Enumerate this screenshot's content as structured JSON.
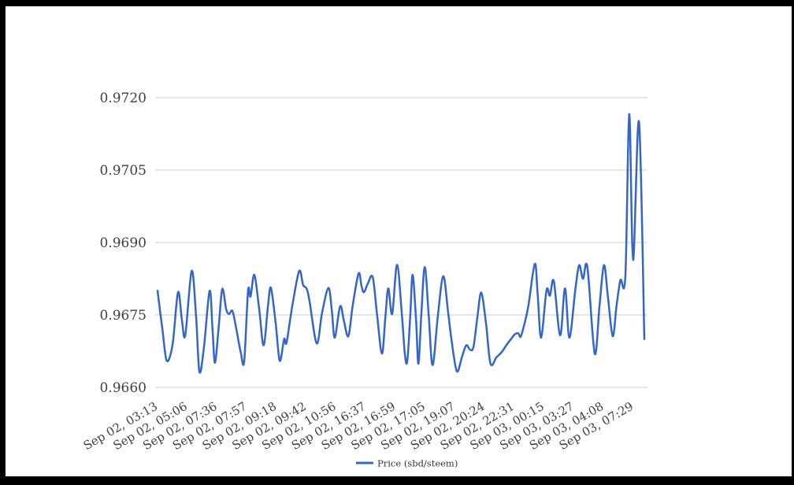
{
  "chart_data": {
    "type": "line",
    "title": "",
    "xlabel": "",
    "ylabel": "",
    "grid": true,
    "ylim": [
      0.966,
      0.972
    ],
    "y_ticks": [
      0.966,
      0.9675,
      0.969,
      0.9705,
      0.972
    ],
    "y_tick_labels": [
      "0.9660",
      "0.9675",
      "0.9690",
      "0.9705",
      "0.9720"
    ],
    "x_ticks": [
      "Sep 02, 03:13",
      "Sep 02, 05:06",
      "Sep 02, 07:36",
      "Sep 02, 07:57",
      "Sep 02, 09:18",
      "Sep 02, 09:42",
      "Sep 02, 10:56",
      "Sep 02, 16:37",
      "Sep 02, 16:59",
      "Sep 02, 17:05",
      "Sep 02, 19:07",
      "Sep 02, 20:24",
      "Sep 02, 22:31",
      "Sep 03, 00:15",
      "Sep 03, 03:27",
      "Sep 03, 04:08",
      "Sep 03, 07:29"
    ],
    "legend": {
      "label": "Price (sbd/steem)",
      "position": "bottom"
    },
    "series": [
      {
        "name": "Price (sbd/steem)",
        "color": "#3366cc",
        "points": [
          [
            0.0,
            0.968
          ],
          [
            0.01,
            0.9672
          ],
          [
            0.019,
            0.96655
          ],
          [
            0.031,
            0.9669
          ],
          [
            0.042,
            0.96797
          ],
          [
            0.05,
            0.9674
          ],
          [
            0.057,
            0.96708
          ],
          [
            0.07,
            0.96841
          ],
          [
            0.079,
            0.9675
          ],
          [
            0.086,
            0.96633
          ],
          [
            0.095,
            0.9668
          ],
          [
            0.107,
            0.968
          ],
          [
            0.113,
            0.9672
          ],
          [
            0.118,
            0.96651
          ],
          [
            0.126,
            0.9673
          ],
          [
            0.133,
            0.96804
          ],
          [
            0.141,
            0.96762
          ],
          [
            0.147,
            0.96752
          ],
          [
            0.154,
            0.96758
          ],
          [
            0.162,
            0.9672
          ],
          [
            0.171,
            0.96672
          ],
          [
            0.178,
            0.96654
          ],
          [
            0.186,
            0.968
          ],
          [
            0.191,
            0.96788
          ],
          [
            0.199,
            0.96833
          ],
          [
            0.209,
            0.9676
          ],
          [
            0.218,
            0.96687
          ],
          [
            0.227,
            0.9677
          ],
          [
            0.233,
            0.96806
          ],
          [
            0.243,
            0.9673
          ],
          [
            0.251,
            0.96655
          ],
          [
            0.26,
            0.967
          ],
          [
            0.265,
            0.96693
          ],
          [
            0.277,
            0.9677
          ],
          [
            0.291,
            0.96841
          ],
          [
            0.299,
            0.96812
          ],
          [
            0.306,
            0.96805
          ],
          [
            0.312,
            0.9678
          ],
          [
            0.327,
            0.96691
          ],
          [
            0.338,
            0.96755
          ],
          [
            0.351,
            0.96806
          ],
          [
            0.358,
            0.9676
          ],
          [
            0.364,
            0.96703
          ],
          [
            0.375,
            0.96768
          ],
          [
            0.383,
            0.96737
          ],
          [
            0.392,
            0.96706
          ],
          [
            0.401,
            0.9677
          ],
          [
            0.413,
            0.96836
          ],
          [
            0.419,
            0.9681
          ],
          [
            0.424,
            0.96797
          ],
          [
            0.432,
            0.96815
          ],
          [
            0.442,
            0.96828
          ],
          [
            0.451,
            0.9675
          ],
          [
            0.461,
            0.9667
          ],
          [
            0.468,
            0.96745
          ],
          [
            0.474,
            0.96805
          ],
          [
            0.482,
            0.96752
          ],
          [
            0.492,
            0.96854
          ],
          [
            0.502,
            0.9675
          ],
          [
            0.508,
            0.9667
          ],
          [
            0.513,
            0.96654
          ],
          [
            0.519,
            0.96745
          ],
          [
            0.524,
            0.96833
          ],
          [
            0.531,
            0.9674
          ],
          [
            0.536,
            0.96649
          ],
          [
            0.542,
            0.96755
          ],
          [
            0.549,
            0.96849
          ],
          [
            0.557,
            0.9675
          ],
          [
            0.565,
            0.96646
          ],
          [
            0.576,
            0.9675
          ],
          [
            0.587,
            0.9683
          ],
          [
            0.597,
            0.96755
          ],
          [
            0.605,
            0.9669
          ],
          [
            0.615,
            0.96633
          ],
          [
            0.625,
            0.96662
          ],
          [
            0.634,
            0.96687
          ],
          [
            0.642,
            0.96678
          ],
          [
            0.649,
            0.96684
          ],
          [
            0.657,
            0.96745
          ],
          [
            0.665,
            0.96796
          ],
          [
            0.675,
            0.9673
          ],
          [
            0.684,
            0.96649
          ],
          [
            0.696,
            0.96662
          ],
          [
            0.707,
            0.96673
          ],
          [
            0.717,
            0.96688
          ],
          [
            0.726,
            0.967
          ],
          [
            0.734,
            0.9671
          ],
          [
            0.741,
            0.96712
          ],
          [
            0.746,
            0.96705
          ],
          [
            0.754,
            0.96733
          ],
          [
            0.762,
            0.9677
          ],
          [
            0.775,
            0.96856
          ],
          [
            0.781,
            0.9679
          ],
          [
            0.788,
            0.96703
          ],
          [
            0.799,
            0.96801
          ],
          [
            0.806,
            0.9679
          ],
          [
            0.814,
            0.9682
          ],
          [
            0.827,
            0.96708
          ],
          [
            0.837,
            0.96805
          ],
          [
            0.846,
            0.96703
          ],
          [
            0.858,
            0.968
          ],
          [
            0.866,
            0.96853
          ],
          [
            0.874,
            0.96825
          ],
          [
            0.883,
            0.96849
          ],
          [
            0.898,
            0.9667
          ],
          [
            0.908,
            0.9677
          ],
          [
            0.917,
            0.96853
          ],
          [
            0.925,
            0.9679
          ],
          [
            0.935,
            0.96706
          ],
          [
            0.943,
            0.9677
          ],
          [
            0.951,
            0.96822
          ],
          [
            0.961,
            0.9683
          ],
          [
            0.969,
            0.97166
          ],
          [
            0.977,
            0.96864
          ],
          [
            0.989,
            0.9715
          ],
          [
            1.0,
            0.967
          ]
        ]
      }
    ]
  },
  "colors": {
    "line": "#3366cc",
    "grid": "#cccccc",
    "axis_label": "#404040",
    "legend_text": "#333333",
    "frame": "#000000",
    "background": "#ffffff"
  }
}
